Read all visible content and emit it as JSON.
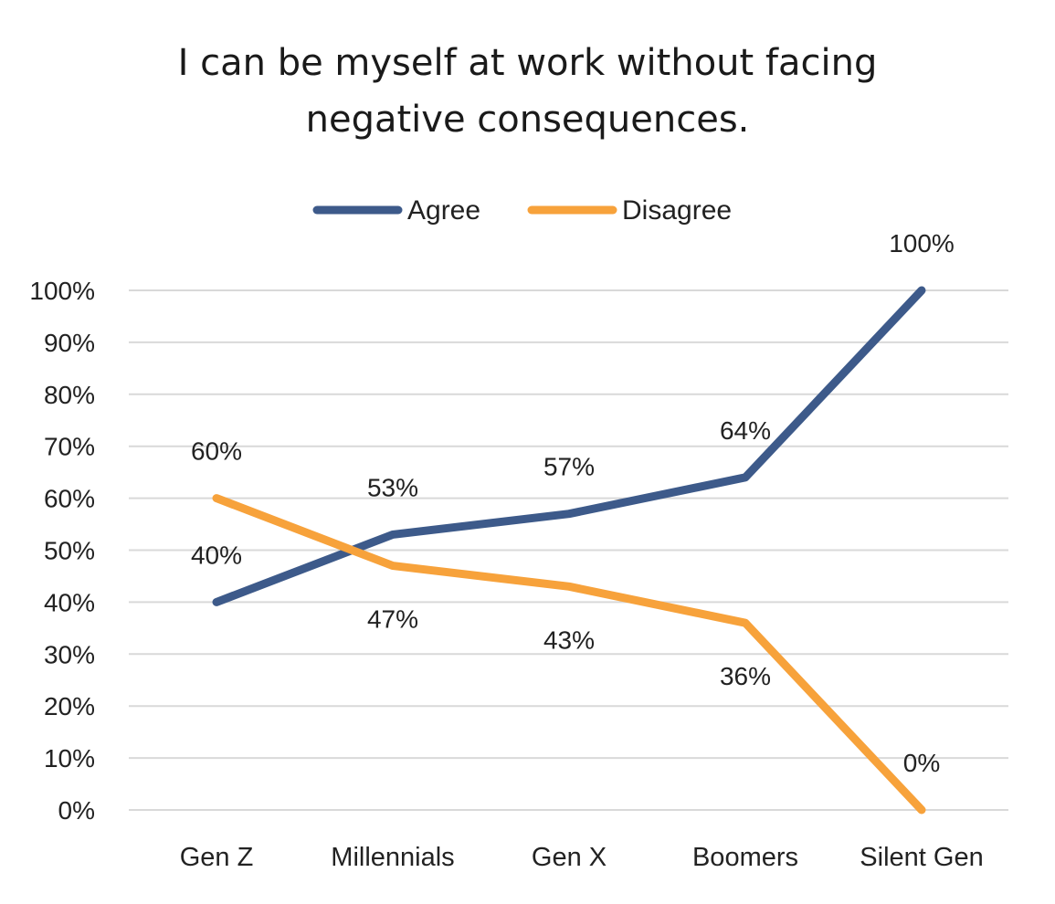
{
  "chart_data": {
    "type": "line",
    "title_lines": [
      "I can be myself at work without facing",
      "negative consequences."
    ],
    "categories": [
      "Gen Z",
      "Millennials",
      "Gen X",
      "Boomers",
      "Silent Gen"
    ],
    "series": [
      {
        "name": "Agree",
        "color": "#3d5a8a",
        "values": [
          40,
          53,
          57,
          64,
          100
        ],
        "labels": [
          "40%",
          "53%",
          "57%",
          "64%",
          "100%"
        ]
      },
      {
        "name": "Disagree",
        "color": "#f7a23b",
        "values": [
          60,
          47,
          43,
          36,
          0
        ],
        "labels": [
          "60%",
          "47%",
          "43%",
          "36%",
          "0%"
        ]
      }
    ],
    "yticks": [
      "0%",
      "10%",
      "20%",
      "30%",
      "40%",
      "50%",
      "60%",
      "70%",
      "80%",
      "90%",
      "100%"
    ],
    "ylim": [
      0,
      100
    ],
    "grid": true,
    "legend_position": "top"
  }
}
